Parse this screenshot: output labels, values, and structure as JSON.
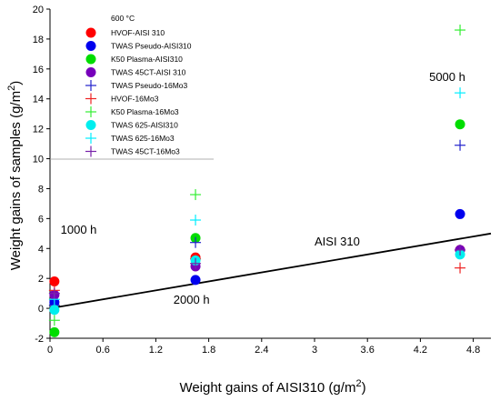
{
  "chart_data": {
    "type": "scatter",
    "xlabel": "Weight gains of AISI310 (g/m",
    "xlabel_sup": "2",
    "xlabel_end": ")",
    "ylabel": "Weight gains of samples (g/m",
    "ylabel_sup": "2",
    "ylabel_end": ")",
    "xlim": [
      0,
      5
    ],
    "ylim": [
      -2,
      20
    ],
    "xticks": [
      "0",
      "0.6",
      "1.2",
      "1.8",
      "2.4",
      "3",
      "3.6",
      "4.2",
      "4.8"
    ],
    "xtick_values": [
      0,
      0.6,
      1.2,
      1.8,
      2.4,
      3,
      3.6,
      4.2,
      4.8
    ],
    "yticks": [
      "-2",
      "0",
      "2",
      "4",
      "6",
      "8",
      "10",
      "12",
      "14",
      "16",
      "18",
      "20"
    ],
    "ytick_values": [
      -2,
      0,
      2,
      4,
      6,
      8,
      10,
      12,
      14,
      16,
      18,
      20
    ],
    "legend_title": "600 °C",
    "legend_position": "top-left",
    "grid": false,
    "series": [
      {
        "name": "HVOF-AISI 310",
        "marker": "circle",
        "color": "#ff0000",
        "points": [
          [
            0.05,
            1.8
          ],
          [
            1.65,
            3.4
          ],
          [
            4.65,
            3.9
          ]
        ]
      },
      {
        "name": "TWAS Pseudo-AISI310",
        "marker": "circle",
        "color": "#0000ee",
        "points": [
          [
            0.05,
            0.4
          ],
          [
            1.65,
            1.9
          ],
          [
            4.65,
            6.3
          ]
        ]
      },
      {
        "name": "K50 Plasma-AISI310",
        "marker": "circle",
        "color": "#00dd00",
        "points": [
          [
            0.05,
            -1.6
          ],
          [
            1.65,
            4.7
          ],
          [
            4.65,
            12.3
          ]
        ]
      },
      {
        "name": "TWAS 45CT-AISI 310",
        "marker": "circle",
        "color": "#7700bb",
        "points": [
          [
            0.05,
            0.9
          ],
          [
            1.65,
            2.8
          ],
          [
            4.65,
            3.9
          ]
        ]
      },
      {
        "name": "TWAS Pseudo-16Mo3",
        "marker": "plus",
        "color": "#2222cc",
        "points": [
          [
            0.05,
            0.2
          ],
          [
            1.65,
            4.4
          ],
          [
            4.65,
            10.9
          ]
        ]
      },
      {
        "name": "HVOF-16Mo3",
        "marker": "plus",
        "color": "#ee2222",
        "points": [
          [
            0.05,
            1.2
          ],
          [
            1.65,
            3.3
          ],
          [
            4.65,
            2.7
          ]
        ]
      },
      {
        "name": "K50 Plasma-16Mo3",
        "marker": "plus",
        "color": "#33ee33",
        "points": [
          [
            0.05,
            -0.8
          ],
          [
            1.65,
            7.6
          ],
          [
            4.65,
            18.6
          ]
        ]
      },
      {
        "name": "TWAS 625-AISI310",
        "marker": "circle",
        "color": "#00eeee",
        "points": [
          [
            0.05,
            -0.1
          ],
          [
            1.65,
            3.2
          ],
          [
            4.65,
            3.6
          ]
        ]
      },
      {
        "name": "TWAS 625-16Mo3",
        "marker": "plus",
        "color": "#00eeff",
        "points": [
          [
            0.05,
            0.6
          ],
          [
            1.65,
            5.9
          ],
          [
            4.65,
            14.4
          ]
        ]
      },
      {
        "name": "TWAS 45CT-16Mo3",
        "marker": "plus",
        "color": "#7722aa",
        "points": [
          [
            0.05,
            1.0
          ],
          [
            1.65,
            3.0
          ],
          [
            4.65,
            3.9
          ]
        ]
      }
    ],
    "reference_line": {
      "name": "AISI 310",
      "points": [
        [
          0,
          0
        ],
        [
          5,
          5
        ]
      ]
    },
    "annotations": [
      {
        "text": "1000 h",
        "x": 0.12,
        "y": 5.0
      },
      {
        "text": "2000 h",
        "x": 1.4,
        "y": 0.3
      },
      {
        "text": "5000 h",
        "x": 4.3,
        "y": 15.2
      },
      {
        "text": "AISI 310",
        "x": 3.0,
        "y": 4.2
      }
    ]
  }
}
